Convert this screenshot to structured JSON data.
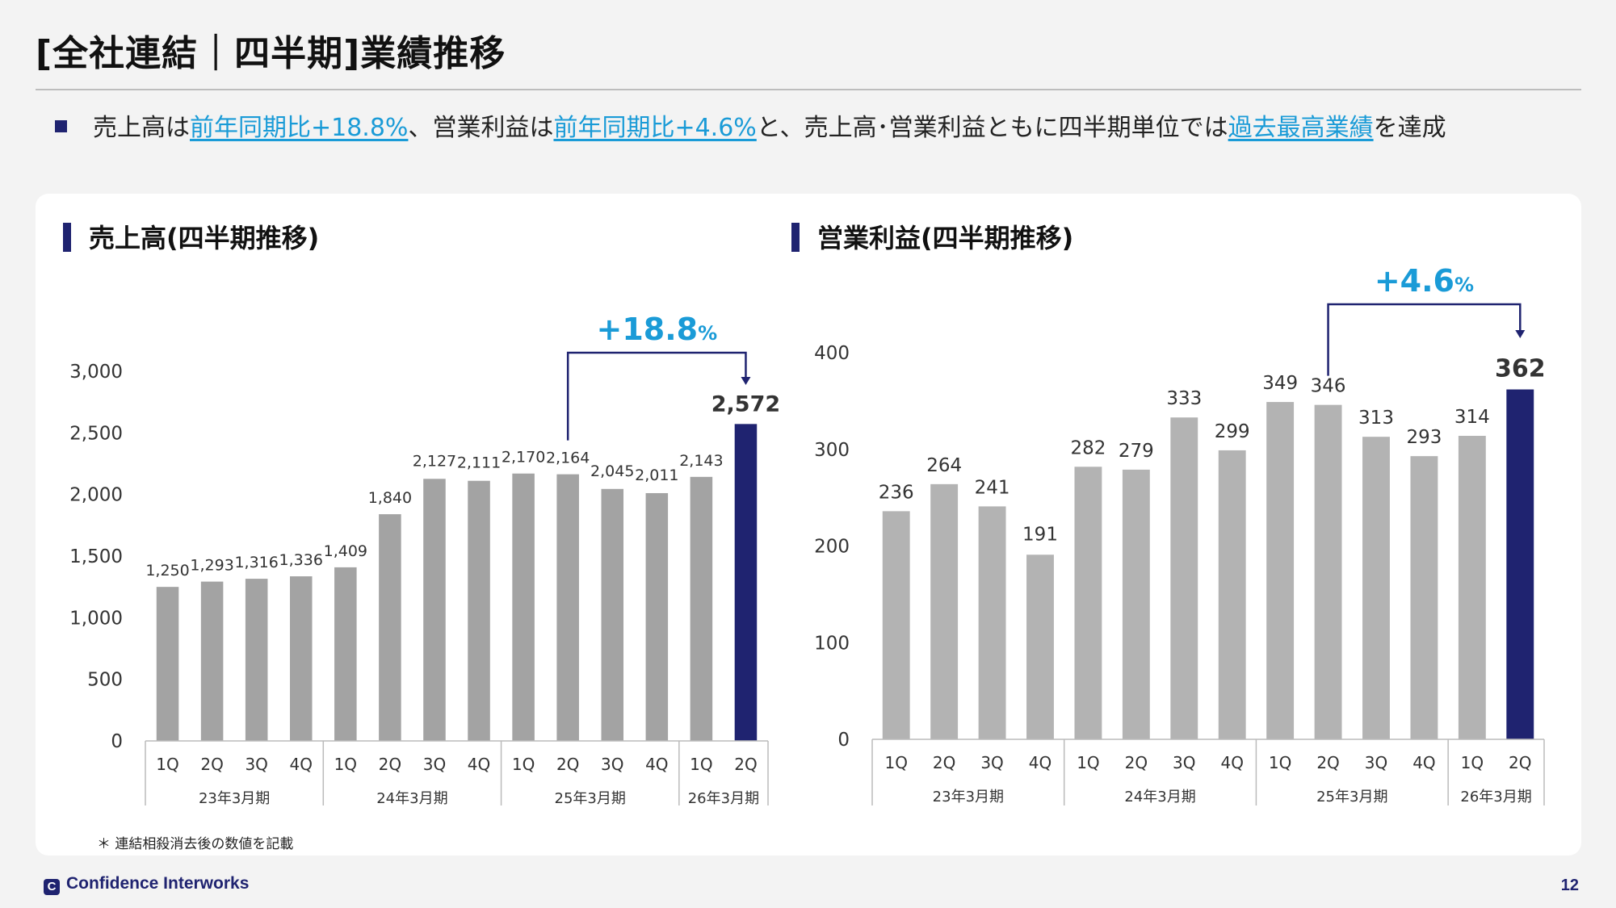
{
  "page": {
    "title": "[全社連結｜四半期]業績推移",
    "summary": {
      "t1": "売上高は",
      "h1": "前年同期比+18.8%",
      "t2": "、営業利益は",
      "h2": "前年同期比+4.6%",
      "t3": "と、売上高･営業利益ともに四半期単位では",
      "h3": "過去最高業績",
      "t4": "を達成"
    },
    "footnote": "＊ 連結相殺消去後の数値を記載",
    "footer_logo": "Confidence Interworks",
    "page_number": "12"
  },
  "colors": {
    "accent": "#1f2370",
    "highlight": "#1a9bd7",
    "revenue_bar": "#a3a3a3",
    "profit_bar": "#b3b3b3"
  },
  "chart_data": [
    {
      "type": "bar",
      "title": "売上高(四半期推移)",
      "categories": [
        "1Q",
        "2Q",
        "3Q",
        "4Q",
        "1Q",
        "2Q",
        "3Q",
        "4Q",
        "1Q",
        "2Q",
        "3Q",
        "4Q",
        "1Q",
        "2Q"
      ],
      "groups": [
        {
          "label": "23年3月期",
          "count": 4
        },
        {
          "label": "24年3月期",
          "count": 4
        },
        {
          "label": "25年3月期",
          "count": 4
        },
        {
          "label": "26年3月期",
          "count": 2
        }
      ],
      "values": [
        1250,
        1293,
        1316,
        1336,
        1409,
        1840,
        2127,
        2111,
        2170,
        2164,
        2045,
        2011,
        2143,
        2572
      ],
      "value_labels": [
        "1,250",
        "1,293",
        "1,316",
        "1,336",
        "1,409",
        "1,840",
        "2,127",
        "2,111",
        "2,170",
        "2,164",
        "2,045",
        "2,011",
        "2,143",
        "2,572"
      ],
      "highlight_index": 13,
      "ylim": [
        0,
        3000
      ],
      "yticks": [
        0,
        500,
        1000,
        1500,
        2000,
        2500,
        3000
      ],
      "ytick_labels": [
        "0",
        "500",
        "1,000",
        "1,500",
        "2,000",
        "2,500",
        "3,000"
      ],
      "annotation": {
        "from_index": 9,
        "to_index": 13,
        "label": "+18.8",
        "unit": "%"
      },
      "grid": false
    },
    {
      "type": "bar",
      "title": "営業利益(四半期推移)",
      "categories": [
        "1Q",
        "2Q",
        "3Q",
        "4Q",
        "1Q",
        "2Q",
        "3Q",
        "4Q",
        "1Q",
        "2Q",
        "3Q",
        "4Q",
        "1Q",
        "2Q"
      ],
      "groups": [
        {
          "label": "23年3月期",
          "count": 4
        },
        {
          "label": "24年3月期",
          "count": 4
        },
        {
          "label": "25年3月期",
          "count": 4
        },
        {
          "label": "26年3月期",
          "count": 2
        }
      ],
      "values": [
        236,
        264,
        241,
        191,
        282,
        279,
        333,
        299,
        349,
        346,
        313,
        293,
        314,
        362
      ],
      "value_labels": [
        "236",
        "264",
        "241",
        "191",
        "282",
        "279",
        "333",
        "299",
        "349",
        "346",
        "313",
        "293",
        "314",
        "362"
      ],
      "highlight_index": 13,
      "ylim": [
        0,
        400
      ],
      "yticks": [
        0,
        100,
        200,
        300,
        400
      ],
      "ytick_labels": [
        "0",
        "100",
        "200",
        "300",
        "400"
      ],
      "annotation": {
        "from_index": 9,
        "to_index": 13,
        "label": "+4.6",
        "unit": "%"
      },
      "grid": false
    }
  ]
}
